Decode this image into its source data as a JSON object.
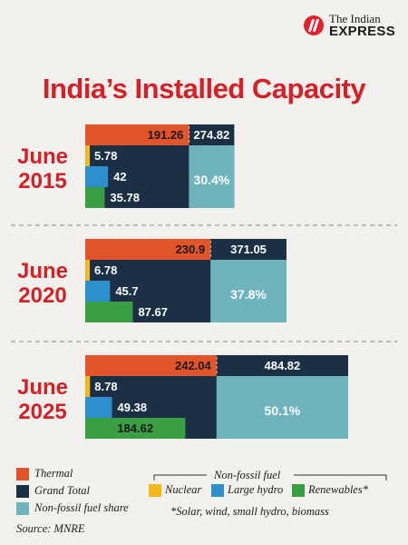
{
  "brand": {
    "line1": "The Indian",
    "line2": "EXPRESS"
  },
  "chart_data": {
    "type": "bar",
    "title": "India’s Installed Capacity",
    "groups": [
      {
        "label_top": "June",
        "label_bottom": "2015",
        "thermal": 191.26,
        "thermal_label": "191.26",
        "nuclear": 5.78,
        "nuclear_label": "5.78",
        "large_hydro": 42,
        "large_hydro_label": "42",
        "renewables": 35.78,
        "renewables_label": "35.78",
        "grand_total": 274.82,
        "grand_total_label": "274.82",
        "non_fossil_share": 30.4,
        "non_fossil_share_label": "30.4%"
      },
      {
        "label_top": "June",
        "label_bottom": "2020",
        "thermal": 230.9,
        "thermal_label": "230.9",
        "nuclear": 6.78,
        "nuclear_label": "6.78",
        "large_hydro": 45.7,
        "large_hydro_label": "45.7",
        "renewables": 87.67,
        "renewables_label": "87.67",
        "grand_total": 371.05,
        "grand_total_label": "371.05",
        "non_fossil_share": 37.8,
        "non_fossil_share_label": "37.8%"
      },
      {
        "label_top": "June",
        "label_bottom": "2025",
        "thermal": 242.04,
        "thermal_label": "242.04",
        "nuclear": 8.78,
        "nuclear_label": "8.78",
        "large_hydro": 49.38,
        "large_hydro_label": "49.38",
        "renewables": 184.62,
        "renewables_label": "184.62",
        "grand_total": 484.82,
        "grand_total_label": "484.82",
        "non_fossil_share": 50.1,
        "non_fossil_share_label": "50.1%"
      }
    ],
    "colors": {
      "thermal": "#e2542a",
      "grand_total": "#1c3045",
      "nuclear": "#f2b81c",
      "large_hydro": "#2d8fce",
      "renewables": "#3a9e43",
      "non_fossil_share": "#6fb3bd",
      "year_label": "#d61f26"
    }
  },
  "legend": {
    "thermal": "Thermal",
    "grand_total": "Grand Total",
    "non_fossil_share": "Non-fossil fuel share",
    "non_fossil_fuel_group": "Non-fossil fuel",
    "nuclear": "Nuclear",
    "large_hydro": "Large hydro",
    "renewables": "Renewables*",
    "footnote": "*Solar, wind, small hydro, biomass"
  },
  "source": "Source: MNRE"
}
